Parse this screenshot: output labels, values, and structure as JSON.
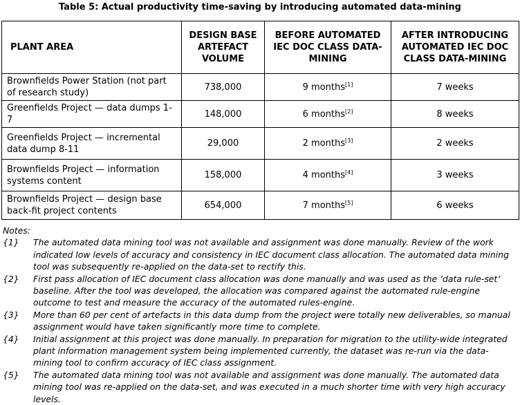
{
  "title": "Table 5: Actual productivity time-saving by introducing automated data-mining",
  "table": {
    "header": [
      "PLANT AREA",
      "DESIGN BASE ARTEFACT VOLUME",
      "BEFORE AUTOMATED IEC DOC CLASS DATA-MINING",
      "AFTER INTRODUCING AUTOMATED IEC DOC CLASS DATA-MINING"
    ],
    "rows": [
      {
        "plant_area": "Brownfields Power Station (not part of research study)",
        "volume": "738,000",
        "before": "9 months",
        "before_ref": "[1]",
        "after": "7 weeks"
      },
      {
        "plant_area": "Greenfields Project — data dumps 1-7",
        "volume": "148,000",
        "before": "6 months",
        "before_ref": "[2]",
        "after": "8 weeks"
      },
      {
        "plant_area": "Greenfields Project — incremental data dump 8-11",
        "volume": "29,000",
        "before": "2 months",
        "before_ref": "[3]",
        "after": "2 weeks"
      },
      {
        "plant_area": "Brownfields Project — information systems content",
        "volume": "158,000",
        "before": "4 months",
        "before_ref": "[4]",
        "after": "3 weeks"
      },
      {
        "plant_area": "Brownfields Project — design base back-fit project contents",
        "volume": "654,000",
        "before": "7 months",
        "before_ref": "[5]",
        "after": "6 weeks"
      }
    ]
  },
  "notes": {
    "label": "Notes:",
    "items": [
      {
        "marker": "{1}",
        "text": "The automated data mining tool was not available and assignment was done manually. Review of the work indicated low levels of accuracy and consistency in IEC document class allocation. The automated data mining tool was subsequently re-applied on the data-set to rectify this."
      },
      {
        "marker": "{2}",
        "text": "First pass allocation of IEC document class allocation was done manually and was used as the ‘data rule-set’ baseline. After the tool was developed, the allocation was compared against the automated rule-engine outcome to test and measure the accuracy of the automated rules-engine."
      },
      {
        "marker": "{3}",
        "text": "More than 60 per cent of artefacts in this data dump from the project were totally new deliverables, so manual assignment would have taken significantly more time to complete."
      },
      {
        "marker": "{4}",
        "text": "Initial assignment at this project was done manually. In preparation for migration to the utility-wide integrated plant information management system being implemented currently, the dataset was re-run via the data-mining tool to confirm accuracy of IEC class assignment."
      },
      {
        "marker": "{5}",
        "text": "The automated data mining tool was not available and assignment was done manually. The automated data mining tool was re-applied on the data-set, and was executed in a much shorter time with very high accuracy levels."
      }
    ]
  }
}
